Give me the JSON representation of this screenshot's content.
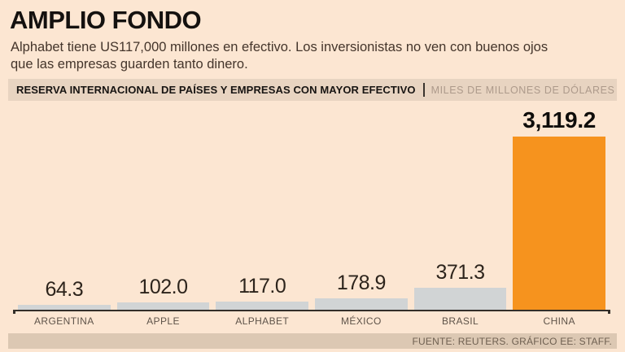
{
  "page": {
    "title": "AMPLIO FONDO",
    "subtitle_line1": "Alphabet tiene US117,000 millones en efectivo. Los inversionistas no ven con buenos ojos",
    "subtitle_line2": "que las empresas guarden tanto dinero."
  },
  "header_bar": {
    "label": "RESERVA INTERNACIONAL DE PAÍSES Y EMPRESAS CON MAYOR EFECTIVO",
    "units": "MILES DE MILLONES DE DÓLARES"
  },
  "chart_data": {
    "type": "bar",
    "title": "RESERVA INTERNACIONAL DE PAÍSES Y EMPRESAS CON MAYOR EFECTIVO",
    "units": "MILES DE MILLONES DE DÓLARES",
    "categories": [
      "ARGENTINA",
      "APPLE",
      "ALPHABET",
      "MÉXICO",
      "BRASIL",
      "CHINA"
    ],
    "values": [
      64.3,
      102.0,
      117.0,
      178.9,
      371.3,
      3119.2
    ],
    "value_labels": [
      "64.3",
      "102.0",
      "117.0",
      "178.9",
      "371.3",
      "3,119.2"
    ],
    "highlight_index": 5,
    "bar_color": "#d1d4d5",
    "highlight_color": "#f6931e",
    "ylim": [
      0,
      3200
    ],
    "grid": false,
    "legend": false,
    "orientation": "vertical"
  },
  "footer": {
    "source": "FUENTE: REUTERS. GRÁFICO EE: STAFF."
  },
  "colors": {
    "background": "#fce6d2",
    "header_strip": "#e8d4c1",
    "footer_strip": "#dcc8b3",
    "bar_gray": "#d1d4d5",
    "bar_orange": "#f6931e",
    "axis": "#332e29"
  }
}
